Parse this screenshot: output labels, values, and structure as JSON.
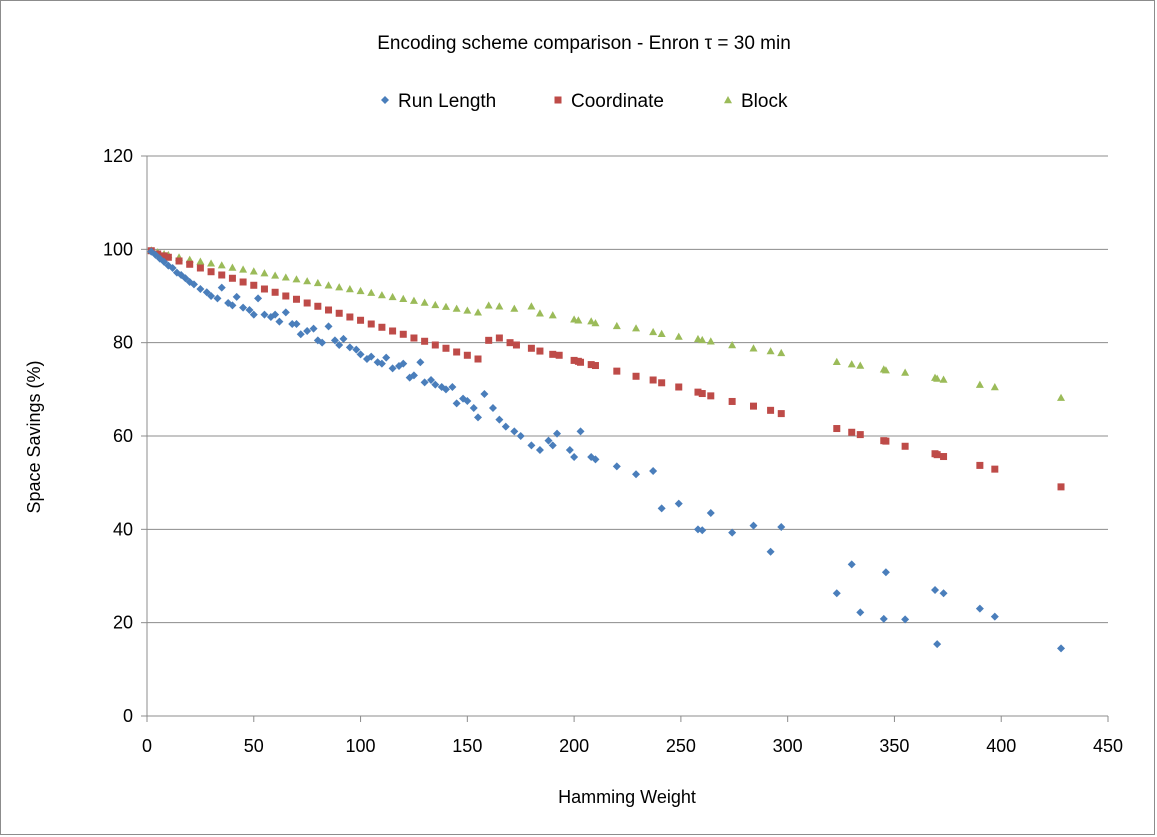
{
  "chart_data": {
    "type": "scatter",
    "title": "Encoding scheme comparison - Enron τ = 30 min",
    "xlabel": "Hamming Weight",
    "ylabel": "Space Savings (%)",
    "xlim": [
      0,
      450
    ],
    "ylim": [
      0,
      120
    ],
    "xticks": [
      "0",
      "50",
      "100",
      "150",
      "200",
      "250",
      "300",
      "350",
      "400",
      "450"
    ],
    "yticks": [
      "0",
      "20",
      "40",
      "60",
      "80",
      "100",
      "120"
    ],
    "xtick_values": [
      0,
      50,
      100,
      150,
      200,
      250,
      300,
      350,
      400,
      450
    ],
    "ytick_values": [
      0,
      20,
      40,
      60,
      80,
      100,
      120
    ],
    "grid": "horizontal",
    "legend_position": "top",
    "series": [
      {
        "name": "Run Length",
        "color": "#4a7ebb",
        "marker": "diamond",
        "x": [
          2,
          4,
          6,
          8,
          10,
          12,
          14,
          16,
          18,
          20,
          22,
          25,
          28,
          30,
          33,
          35,
          38,
          40,
          42,
          45,
          48,
          50,
          52,
          55,
          58,
          60,
          62,
          65,
          68,
          70,
          72,
          75,
          78,
          80,
          82,
          85,
          88,
          90,
          92,
          95,
          98,
          100,
          103,
          105,
          108,
          110,
          112,
          115,
          118,
          120,
          123,
          125,
          128,
          130,
          133,
          135,
          138,
          140,
          143,
          145,
          148,
          150,
          153,
          155,
          158,
          162,
          165,
          168,
          172,
          175,
          180,
          184,
          188,
          190,
          192,
          198,
          200,
          203,
          208,
          210,
          220,
          229,
          237,
          241,
          249,
          258,
          260,
          264,
          274,
          284,
          292,
          297,
          323,
          330,
          334,
          345,
          346,
          355,
          369,
          370,
          373,
          390,
          397,
          428
        ],
        "y": [
          99.5,
          98.8,
          98,
          97.3,
          96.5,
          96,
          95,
          94.5,
          93.8,
          93,
          92.5,
          91.5,
          90.8,
          90,
          89.5,
          91.8,
          88.5,
          88,
          89.8,
          87.5,
          87,
          86,
          89.5,
          86,
          85.5,
          86,
          84.5,
          86.5,
          84,
          84,
          81.8,
          82.5,
          83,
          80.5,
          80,
          83.5,
          80.5,
          79.5,
          80.8,
          79,
          78.5,
          77.5,
          76.5,
          77,
          75.8,
          75.5,
          76.8,
          74.5,
          75,
          75.5,
          72.5,
          73,
          75.8,
          71.5,
          72,
          71,
          70.5,
          70,
          70.5,
          67,
          68,
          67.5,
          66,
          64,
          69,
          66,
          63.5,
          62,
          61,
          60,
          58,
          57,
          59,
          58,
          60.5,
          57,
          55.5,
          61,
          55.5,
          55,
          53.5,
          51.8,
          52.5,
          44.5,
          45.5,
          40,
          39.8,
          43.5,
          39.3,
          40.8,
          35.2,
          40.5,
          26.3,
          32.5,
          22.2,
          20.8,
          30.8,
          20.7,
          27,
          15.4,
          26.3,
          23,
          21.3,
          14.5
        ]
      },
      {
        "name": "Coordinate",
        "color": "#be4b48",
        "marker": "square",
        "x": [
          2,
          5,
          8,
          10,
          15,
          20,
          25,
          30,
          35,
          40,
          45,
          50,
          55,
          60,
          65,
          70,
          75,
          80,
          85,
          90,
          95,
          100,
          105,
          110,
          115,
          120,
          125,
          130,
          135,
          140,
          145,
          150,
          155,
          160,
          165,
          170,
          173,
          180,
          184,
          190,
          193,
          200,
          202,
          203,
          208,
          210,
          220,
          229,
          237,
          241,
          249,
          258,
          260,
          264,
          274,
          284,
          292,
          297,
          323,
          330,
          334,
          345,
          346,
          355,
          369,
          370,
          373,
          390,
          397,
          428
        ],
        "y": [
          99.7,
          99,
          98.6,
          98.3,
          97.5,
          96.8,
          96,
          95.2,
          94.5,
          93.8,
          93,
          92.3,
          91.5,
          90.8,
          90,
          89.3,
          88.5,
          87.8,
          87,
          86.3,
          85.5,
          84.8,
          84,
          83.3,
          82.5,
          81.8,
          81,
          80.3,
          79.5,
          78.8,
          78,
          77.3,
          76.5,
          80.5,
          81,
          80,
          79.5,
          78.8,
          78.2,
          77.5,
          77.3,
          76.2,
          76,
          75.8,
          75.3,
          75.1,
          73.9,
          72.8,
          72,
          71.4,
          70.5,
          69.4,
          69.1,
          68.6,
          67.4,
          66.4,
          65.5,
          64.8,
          61.6,
          60.8,
          60.3,
          59,
          58.9,
          57.8,
          56.2,
          56,
          55.6,
          53.7,
          52.9,
          49.1
        ]
      },
      {
        "name": "Block",
        "color": "#9bbb59",
        "marker": "triangle",
        "x": [
          2,
          5,
          8,
          10,
          15,
          20,
          25,
          30,
          35,
          40,
          45,
          50,
          55,
          60,
          65,
          70,
          75,
          80,
          85,
          90,
          95,
          100,
          105,
          110,
          115,
          120,
          125,
          130,
          135,
          140,
          145,
          150,
          155,
          160,
          165,
          172,
          180,
          184,
          190,
          200,
          202,
          208,
          210,
          220,
          229,
          237,
          241,
          249,
          258,
          260,
          264,
          274,
          284,
          292,
          297,
          323,
          330,
          334,
          345,
          346,
          355,
          369,
          370,
          373,
          390,
          397,
          428
        ],
        "y": [
          99.8,
          99.4,
          99,
          98.8,
          98.3,
          97.8,
          97.4,
          97,
          96.6,
          96.1,
          95.7,
          95.3,
          94.9,
          94.4,
          94,
          93.6,
          93.2,
          92.8,
          92.3,
          91.9,
          91.5,
          91.1,
          90.7,
          90.2,
          89.8,
          89.4,
          89,
          88.6,
          88.1,
          87.7,
          87.3,
          86.9,
          86.5,
          88,
          87.8,
          87.3,
          87.8,
          86.3,
          85.9,
          85,
          84.8,
          84.6,
          84.2,
          83.6,
          83.1,
          82.3,
          81.9,
          81.3,
          80.8,
          80.6,
          80.3,
          79.5,
          78.8,
          78.2,
          77.8,
          75.9,
          75.4,
          75.1,
          74.3,
          74.1,
          73.6,
          72.5,
          72.3,
          72.1,
          71,
          70.5,
          68.2
        ]
      }
    ]
  }
}
